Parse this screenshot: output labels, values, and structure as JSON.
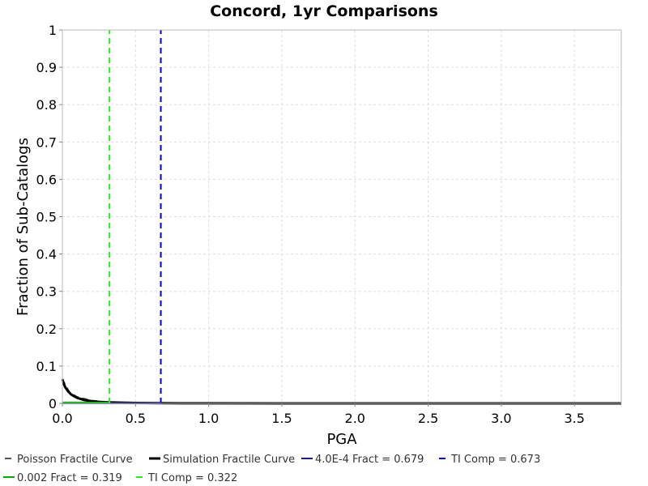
{
  "chart_data": {
    "type": "line",
    "title": "Concord, 1yr Comparisons",
    "xlabel": "PGA",
    "ylabel": "Fraction of Sub-Catalogs",
    "xlim": [
      0,
      3.82
    ],
    "ylim": [
      0,
      1
    ],
    "x_ticks": [
      "0.0",
      "0.5",
      "1.0",
      "1.5",
      "2.0",
      "2.5",
      "3.0",
      "3.5"
    ],
    "y_ticks": [
      "0",
      "0.1",
      "0.2",
      "0.3",
      "0.4",
      "0.5",
      "0.6",
      "0.7",
      "0.8",
      "0.9",
      "1"
    ],
    "grid": true,
    "legend_position": "bottom",
    "series": [
      {
        "name": "Poisson Fractile Curve",
        "color": "#555555",
        "style": "dashed",
        "x": [
          0.0,
          0.05,
          0.1,
          0.2,
          0.3,
          0.5,
          0.8,
          1.5,
          3.82
        ],
        "y": [
          0.065,
          0.03,
          0.018,
          0.008,
          0.004,
          0.0015,
          0.0005,
          0.0001,
          0.0
        ]
      },
      {
        "name": "Simulation Fractile Curve",
        "color": "#000000",
        "style": "solid",
        "x": [
          0.0,
          0.01,
          0.02,
          0.04,
          0.06,
          0.08,
          0.1,
          0.15,
          0.2,
          0.25,
          0.3,
          0.4,
          0.5,
          0.6,
          0.8,
          1.0,
          1.5,
          2.0,
          3.0,
          3.82
        ],
        "y": [
          0.065,
          0.052,
          0.043,
          0.032,
          0.024,
          0.019,
          0.015,
          0.009,
          0.006,
          0.004,
          0.003,
          0.0018,
          0.0012,
          0.0008,
          0.0004,
          0.0002,
          0.0001,
          0.0,
          0.0,
          0.0
        ]
      },
      {
        "name": "4.0E-4 Fract = 0.679",
        "color": "#1a1aa0",
        "style": "solid",
        "x": [
          0.0,
          0.679
        ],
        "y": [
          0.0004,
          0.0004
        ]
      },
      {
        "name": "TI Comp = 0.673",
        "color": "#0000dd",
        "style": "dashed",
        "x": [
          0.673,
          0.673
        ],
        "y": [
          0,
          1
        ]
      },
      {
        "name": "0.002 Fract = 0.319",
        "color": "#00aa00",
        "style": "solid",
        "x": [
          0.0,
          0.319
        ],
        "y": [
          0.002,
          0.002
        ]
      },
      {
        "name": "TI Comp = 0.322",
        "color": "#22ee22",
        "style": "dashed",
        "x": [
          0.322,
          0.322
        ],
        "y": [
          0,
          1
        ]
      }
    ]
  }
}
